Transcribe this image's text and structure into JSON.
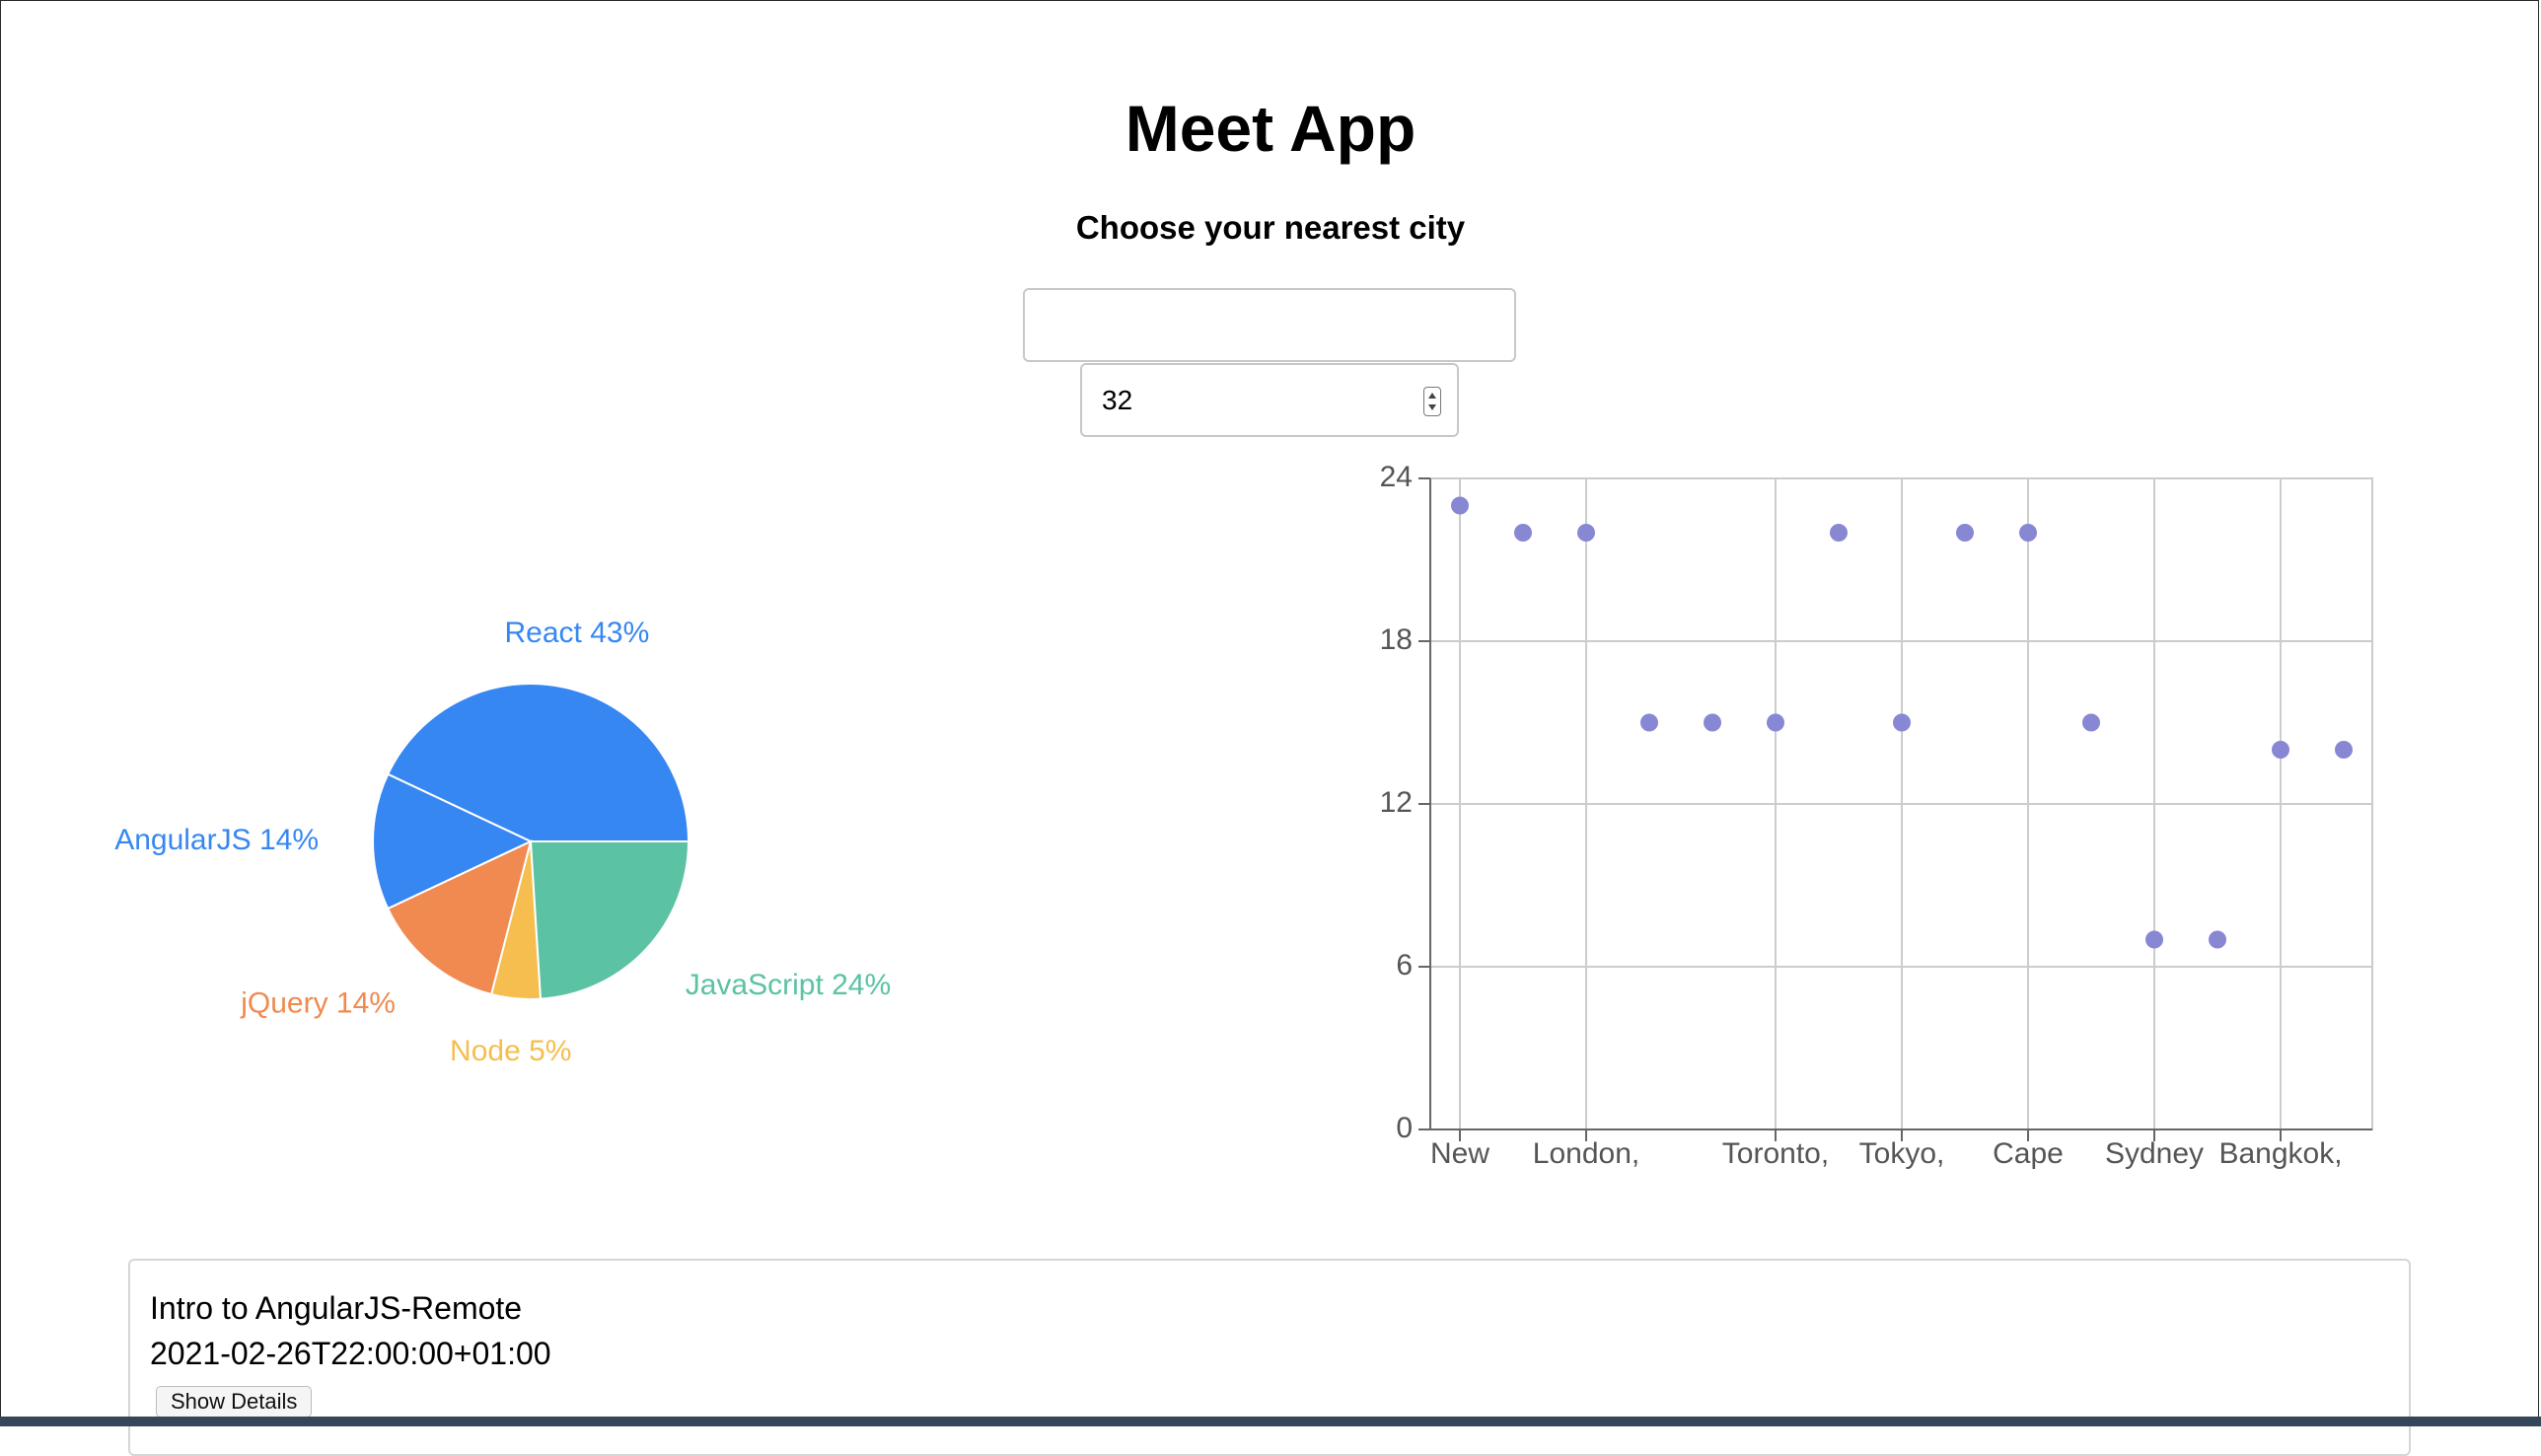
{
  "app": {
    "title": "Meet App",
    "city_prompt": "Choose your nearest city",
    "city_input_value": "",
    "number_of_events": "32"
  },
  "colors": {
    "react": "#3787f2",
    "angularjs": "#3787f2",
    "jquery": "#f08a50",
    "node": "#f5be4e",
    "javascript": "#5bc2a3",
    "scatter_point": "#8787d4"
  },
  "chart_data": [
    {
      "type": "pie",
      "slices": [
        {
          "label": "React 43%",
          "name": "React",
          "percent": 43,
          "color": "#3787f2"
        },
        {
          "label": "AngularJS 14%",
          "name": "AngularJS",
          "percent": 14,
          "color": "#3787f2"
        },
        {
          "label": "jQuery 14%",
          "name": "jQuery",
          "percent": 14,
          "color": "#f08a50"
        },
        {
          "label": "Node 5%",
          "name": "Node",
          "percent": 5,
          "color": "#f5be4e"
        },
        {
          "label": "JavaScript 24%",
          "name": "JavaScript",
          "percent": 24,
          "color": "#5bc2a3"
        }
      ]
    },
    {
      "type": "scatter",
      "x_tick_labels": [
        "New",
        "",
        "London,",
        "",
        "",
        "Toronto,",
        "",
        "Tokyo,",
        "",
        "Cape",
        "",
        "Sydney",
        "",
        "Bangkok,"
      ],
      "y_ticks": [
        0,
        6,
        12,
        18,
        24
      ],
      "ylim": [
        0,
        24
      ],
      "grid": true,
      "points": [
        {
          "x": 0,
          "y": 23
        },
        {
          "x": 1,
          "y": 22
        },
        {
          "x": 2,
          "y": 22
        },
        {
          "x": 3,
          "y": 15
        },
        {
          "x": 4,
          "y": 15
        },
        {
          "x": 5,
          "y": 15
        },
        {
          "x": 6,
          "y": 22
        },
        {
          "x": 7,
          "y": 15
        },
        {
          "x": 8,
          "y": 22
        },
        {
          "x": 9,
          "y": 22
        },
        {
          "x": 10,
          "y": 15
        },
        {
          "x": 11,
          "y": 7
        },
        {
          "x": 12,
          "y": 7
        },
        {
          "x": 13,
          "y": 14
        },
        {
          "x": 14,
          "y": 14
        }
      ]
    }
  ],
  "event": {
    "title": "Intro to AngularJS-Remote",
    "start_time": "2021-02-26T22:00:00+01:00",
    "details_button": "Show Details"
  }
}
